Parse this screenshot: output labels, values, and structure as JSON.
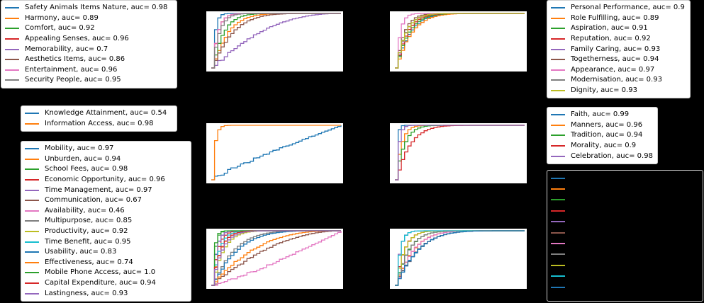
{
  "colors": {
    "blue": "#1f77b4",
    "orange": "#ff7f0e",
    "green": "#2ca02c",
    "red": "#d62728",
    "purple": "#9467bd",
    "brown": "#8c564b",
    "pink": "#e377c2",
    "gray": "#7f7f7f",
    "olive": "#bcbd22",
    "cyan": "#17becf"
  },
  "chart_data": [
    {
      "type": "line",
      "panel": "top-left",
      "legend_location": "left",
      "series": [
        {
          "name": "Safety Animals Items Nature, auc= 0.98",
          "auc": 0.98,
          "color": "#1f77b4"
        },
        {
          "name": "Harmony, auc= 0.89",
          "auc": 0.89,
          "color": "#ff7f0e"
        },
        {
          "name": "Comfort, auc= 0.92",
          "auc": 0.92,
          "color": "#2ca02c"
        },
        {
          "name": "Appealing Senses, auc= 0.96",
          "auc": 0.96,
          "color": "#d62728"
        },
        {
          "name": "Memorability, auc= 0.7",
          "auc": 0.7,
          "color": "#9467bd"
        },
        {
          "name": "Aesthetics Items, auc= 0.86",
          "auc": 0.86,
          "color": "#8c564b"
        },
        {
          "name": "Entertainment, auc= 0.96",
          "auc": 0.96,
          "color": "#e377c2"
        },
        {
          "name": "Security People, auc= 0.95",
          "auc": 0.95,
          "color": "#7f7f7f"
        }
      ]
    },
    {
      "type": "line",
      "panel": "top-right",
      "legend_location": "right",
      "series": [
        {
          "name": "Personal Performance, auc= 0.9",
          "auc": 0.9,
          "color": "#1f77b4"
        },
        {
          "name": "Role Fulfilling, auc= 0.89",
          "auc": 0.89,
          "color": "#ff7f0e"
        },
        {
          "name": "Aspiration, auc= 0.91",
          "auc": 0.91,
          "color": "#2ca02c"
        },
        {
          "name": "Reputation, auc= 0.92",
          "auc": 0.92,
          "color": "#d62728"
        },
        {
          "name": "Family Caring, auc= 0.93",
          "auc": 0.93,
          "color": "#9467bd"
        },
        {
          "name": "Togetherness, auc= 0.94",
          "auc": 0.94,
          "color": "#8c564b"
        },
        {
          "name": "Appearance, auc= 0.97",
          "auc": 0.97,
          "color": "#e377c2"
        },
        {
          "name": "Modernisation, auc= 0.93",
          "auc": 0.93,
          "color": "#7f7f7f"
        },
        {
          "name": "Dignity, auc= 0.93",
          "auc": 0.93,
          "color": "#bcbd22"
        }
      ]
    },
    {
      "type": "line",
      "panel": "middle-left",
      "legend_location": "left",
      "series": [
        {
          "name": "Knowledge Attainment, auc= 0.54",
          "auc": 0.54,
          "color": "#1f77b4"
        },
        {
          "name": "Information Access, auc= 0.98",
          "auc": 0.98,
          "color": "#ff7f0e"
        }
      ]
    },
    {
      "type": "line",
      "panel": "middle-right",
      "legend_location": "right",
      "series": [
        {
          "name": "Faith, auc= 0.99",
          "auc": 0.99,
          "color": "#1f77b4"
        },
        {
          "name": "Manners, auc= 0.96",
          "auc": 0.96,
          "color": "#ff7f0e"
        },
        {
          "name": "Tradition, auc= 0.94",
          "auc": 0.94,
          "color": "#2ca02c"
        },
        {
          "name": "Morality, auc= 0.9",
          "auc": 0.9,
          "color": "#d62728"
        },
        {
          "name": "Celebration, auc= 0.98",
          "auc": 0.98,
          "color": "#9467bd"
        }
      ]
    },
    {
      "type": "line",
      "panel": "bottom-left",
      "legend_location": "left",
      "series": [
        {
          "name": "Mobility, auc= 0.97",
          "auc": 0.97,
          "color": "#1f77b4"
        },
        {
          "name": "Unburden, auc= 0.94",
          "auc": 0.94,
          "color": "#ff7f0e"
        },
        {
          "name": "School Fees, auc= 0.98",
          "auc": 0.98,
          "color": "#2ca02c"
        },
        {
          "name": "Economic Opportunity, auc= 0.96",
          "auc": 0.96,
          "color": "#d62728"
        },
        {
          "name": "Time Management, auc= 0.97",
          "auc": 0.97,
          "color": "#9467bd"
        },
        {
          "name": "Communication, auc= 0.67",
          "auc": 0.67,
          "color": "#8c564b"
        },
        {
          "name": "Availability, auc= 0.46",
          "auc": 0.46,
          "color": "#e377c2"
        },
        {
          "name": "Multipurpose, auc= 0.85",
          "auc": 0.85,
          "color": "#7f7f7f"
        },
        {
          "name": "Productivity, auc= 0.92",
          "auc": 0.92,
          "color": "#bcbd22"
        },
        {
          "name": "Time Benefit, auc= 0.95",
          "auc": 0.95,
          "color": "#17becf"
        },
        {
          "name": "Usability, auc= 0.83",
          "auc": 0.83,
          "color": "#1f77b4"
        },
        {
          "name": "Effectiveness, auc= 0.74",
          "auc": 0.74,
          "color": "#ff7f0e"
        },
        {
          "name": "Mobile Phone Access, auc= 1.0",
          "auc": 1.0,
          "color": "#2ca02c"
        },
        {
          "name": "Capital Expenditure, auc= 0.94",
          "auc": 0.94,
          "color": "#d62728"
        },
        {
          "name": "Lastingness, auc= 0.93",
          "auc": 0.93,
          "color": "#9467bd"
        }
      ]
    },
    {
      "type": "line",
      "panel": "bottom-right",
      "legend_location": "right",
      "series": [
        {
          "auc": null,
          "color": "#1f77b4"
        },
        {
          "auc": null,
          "color": "#ff7f0e"
        },
        {
          "auc": null,
          "color": "#2ca02c"
        },
        {
          "auc": null,
          "color": "#d62728"
        },
        {
          "auc": null,
          "color": "#9467bd"
        },
        {
          "auc": null,
          "color": "#8c564b"
        },
        {
          "auc": null,
          "color": "#e377c2"
        },
        {
          "auc": null,
          "color": "#7f7f7f"
        },
        {
          "auc": null,
          "color": "#bcbd22"
        },
        {
          "auc": null,
          "color": "#17becf"
        },
        {
          "auc": null,
          "color": "#1f77b4"
        }
      ]
    }
  ]
}
